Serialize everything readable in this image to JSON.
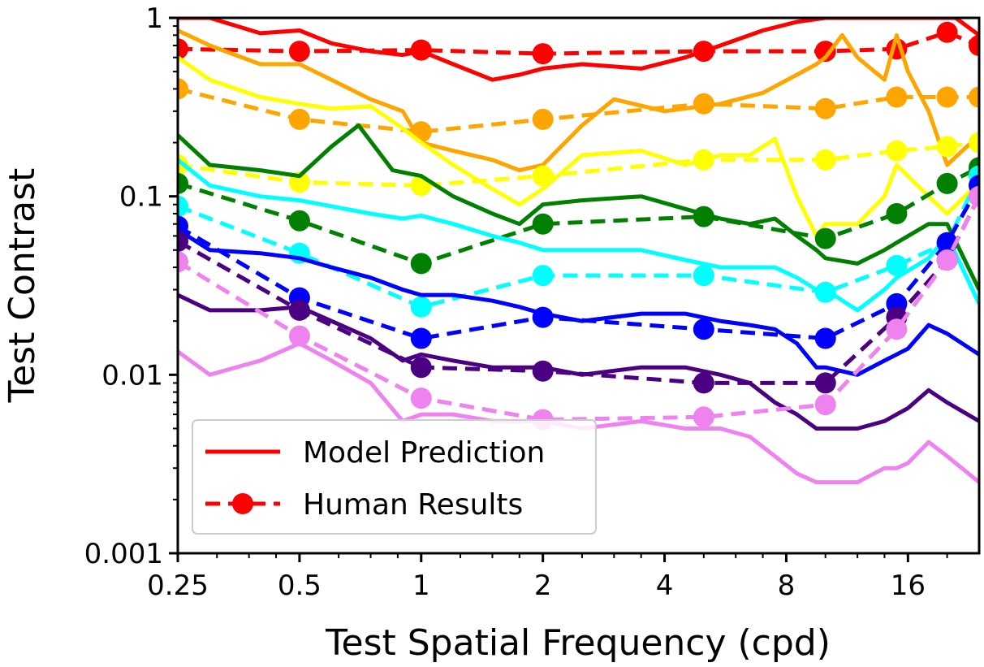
{
  "chart_data": {
    "type": "line",
    "xlabel": "Test Spatial Frequency (cpd)",
    "ylabel": "Test Contrast",
    "xscale": "log2",
    "yscale": "log10",
    "xlim": [
      0.25,
      24
    ],
    "ylim": [
      0.001,
      1
    ],
    "x_ticks": [
      0.25,
      0.5,
      1,
      2,
      4,
      8,
      16
    ],
    "x_tick_labels": [
      "0.25",
      "0.5",
      "1",
      "2",
      "4",
      "8",
      "16"
    ],
    "y_ticks": [
      0.001,
      0.01,
      0.1,
      1
    ],
    "y_tick_labels": [
      "0.001",
      "0.01",
      "0.1",
      "1"
    ],
    "legend": {
      "placement": "lower-left",
      "entries": [
        {
          "label": "Model Prediction",
          "style": "solid"
        },
        {
          "label": "Human Results",
          "style": "dashed-marker"
        }
      ]
    },
    "human_x": [
      0.25,
      0.5,
      1,
      2,
      5,
      10,
      15,
      20,
      24
    ],
    "series": [
      {
        "color": "#ff0000",
        "model_x": [
          0.25,
          0.3,
          0.4,
          0.5,
          0.6,
          0.75,
          0.9,
          1.0,
          1.2,
          1.5,
          1.75,
          2.0,
          2.5,
          3.5,
          4.5,
          5.5,
          7.0,
          8.5,
          10,
          12,
          15,
          18,
          21,
          24
        ],
        "model_y": [
          1.0,
          1.0,
          0.82,
          0.85,
          0.72,
          0.65,
          0.62,
          0.65,
          0.55,
          0.45,
          0.48,
          0.52,
          0.55,
          0.52,
          0.6,
          0.7,
          0.85,
          0.95,
          1.0,
          1.0,
          1.0,
          1.0,
          1.0,
          0.8
        ],
        "human_y": [
          0.67,
          0.65,
          0.66,
          0.63,
          0.65,
          0.65,
          0.67,
          0.83,
          0.7
        ]
      },
      {
        "color": "#ffa500",
        "model_x": [
          0.25,
          0.3,
          0.4,
          0.5,
          0.6,
          0.75,
          0.9,
          1.0,
          1.2,
          1.5,
          1.75,
          2.0,
          2.5,
          3.0,
          4.0,
          5.5,
          7.0,
          8.5,
          9.5,
          10,
          11,
          12,
          14,
          15,
          16,
          18,
          20,
          24
        ],
        "model_y": [
          0.85,
          0.7,
          0.55,
          0.55,
          0.45,
          0.35,
          0.3,
          0.2,
          0.18,
          0.16,
          0.14,
          0.15,
          0.25,
          0.35,
          0.3,
          0.33,
          0.38,
          0.48,
          0.55,
          0.6,
          0.8,
          0.6,
          0.45,
          0.8,
          0.5,
          0.3,
          0.15,
          0.22
        ],
        "human_y": [
          0.4,
          0.27,
          0.23,
          0.27,
          0.33,
          0.31,
          0.36,
          0.36,
          0.36
        ]
      },
      {
        "color": "#ffff00",
        "model_x": [
          0.25,
          0.3,
          0.4,
          0.5,
          0.6,
          0.75,
          0.9,
          1.0,
          1.2,
          1.5,
          1.75,
          2.0,
          2.5,
          3.5,
          4.5,
          5.5,
          6.5,
          7.5,
          8.5,
          9.5,
          10,
          12,
          14,
          15,
          18,
          20,
          24
        ],
        "model_y": [
          0.6,
          0.45,
          0.36,
          0.33,
          0.31,
          0.32,
          0.24,
          0.2,
          0.15,
          0.11,
          0.09,
          0.11,
          0.17,
          0.18,
          0.15,
          0.17,
          0.17,
          0.21,
          0.1,
          0.06,
          0.07,
          0.07,
          0.1,
          0.15,
          0.1,
          0.08,
          0.12
        ],
        "human_y": [
          0.15,
          0.12,
          0.115,
          0.13,
          0.16,
          0.16,
          0.18,
          0.19,
          0.2
        ]
      },
      {
        "color": "#008000",
        "model_x": [
          0.25,
          0.3,
          0.4,
          0.5,
          0.6,
          0.7,
          0.85,
          1.0,
          1.2,
          1.5,
          1.75,
          2.0,
          2.5,
          3.5,
          4.5,
          5.5,
          6.5,
          7.5,
          8.5,
          9.5,
          10,
          12,
          14,
          15,
          18,
          20,
          24
        ],
        "model_y": [
          0.22,
          0.15,
          0.14,
          0.13,
          0.19,
          0.25,
          0.14,
          0.13,
          0.1,
          0.08,
          0.07,
          0.09,
          0.095,
          0.1,
          0.085,
          0.075,
          0.07,
          0.075,
          0.06,
          0.05,
          0.045,
          0.042,
          0.05,
          0.055,
          0.07,
          0.07,
          0.03
        ],
        "human_y": [
          0.118,
          0.073,
          0.042,
          0.07,
          0.077,
          0.058,
          0.08,
          0.118,
          0.145
        ]
      },
      {
        "color": "#00ffff",
        "model_x": [
          0.25,
          0.3,
          0.4,
          0.5,
          0.6,
          0.75,
          0.9,
          1.0,
          1.2,
          1.5,
          1.75,
          2.0,
          2.5,
          3.5,
          4.5,
          5.5,
          6.5,
          7.5,
          8.5,
          9.5,
          10,
          12,
          14,
          15,
          18,
          20,
          24
        ],
        "model_y": [
          0.16,
          0.115,
          0.1,
          0.095,
          0.088,
          0.08,
          0.075,
          0.078,
          0.07,
          0.06,
          0.055,
          0.05,
          0.05,
          0.05,
          0.044,
          0.04,
          0.04,
          0.04,
          0.035,
          0.03,
          0.03,
          0.023,
          0.03,
          0.035,
          0.045,
          0.06,
          0.025
        ],
        "human_y": [
          0.088,
          0.048,
          0.024,
          0.036,
          0.036,
          0.029,
          0.041,
          0.055,
          0.13
        ]
      },
      {
        "color": "#0000ff",
        "model_x": [
          0.25,
          0.3,
          0.4,
          0.5,
          0.6,
          0.75,
          0.9,
          1.0,
          1.2,
          1.5,
          1.75,
          2.0,
          2.5,
          3.5,
          4.5,
          5.5,
          6.5,
          7.5,
          8.5,
          9.5,
          10,
          12,
          14,
          15,
          16,
          18,
          20,
          24
        ],
        "model_y": [
          0.065,
          0.05,
          0.048,
          0.045,
          0.04,
          0.035,
          0.03,
          0.028,
          0.028,
          0.026,
          0.024,
          0.022,
          0.02,
          0.022,
          0.022,
          0.02,
          0.019,
          0.018,
          0.015,
          0.011,
          0.011,
          0.01,
          0.012,
          0.013,
          0.014,
          0.019,
          0.017,
          0.013
        ],
        "human_y": [
          0.068,
          0.027,
          0.016,
          0.021,
          0.018,
          0.016,
          0.025,
          0.055,
          0.115
        ]
      },
      {
        "color": "#4b0082",
        "model_x": [
          0.25,
          0.3,
          0.4,
          0.5,
          0.6,
          0.75,
          0.9,
          1.0,
          1.2,
          1.5,
          1.75,
          2.0,
          2.5,
          3.5,
          4.5,
          5.5,
          6.5,
          7.5,
          8.5,
          9.5,
          10,
          12,
          14,
          15,
          16,
          18,
          20,
          24
        ],
        "model_y": [
          0.028,
          0.023,
          0.023,
          0.024,
          0.02,
          0.016,
          0.012,
          0.013,
          0.012,
          0.011,
          0.011,
          0.011,
          0.01,
          0.011,
          0.011,
          0.01,
          0.009,
          0.007,
          0.006,
          0.005,
          0.005,
          0.005,
          0.0055,
          0.006,
          0.0065,
          0.0082,
          0.007,
          0.0055
        ],
        "human_y": [
          0.056,
          0.023,
          0.011,
          0.0105,
          0.009,
          0.009,
          0.021,
          0.044,
          0.1
        ]
      },
      {
        "color": "#ee82ee",
        "model_x": [
          0.25,
          0.3,
          0.4,
          0.5,
          0.6,
          0.75,
          0.9,
          1.0,
          1.2,
          1.5,
          1.75,
          2.0,
          2.5,
          3.5,
          4.5,
          5.5,
          6.5,
          7.5,
          8.5,
          9.5,
          10,
          12,
          14,
          15,
          16,
          18,
          20,
          24
        ],
        "model_y": [
          0.0135,
          0.01,
          0.012,
          0.015,
          0.012,
          0.009,
          0.0055,
          0.006,
          0.006,
          0.0055,
          0.0055,
          0.0055,
          0.005,
          0.0055,
          0.005,
          0.005,
          0.0045,
          0.0035,
          0.0028,
          0.0025,
          0.0025,
          0.0025,
          0.003,
          0.003,
          0.0032,
          0.0042,
          0.0035,
          0.0025
        ],
        "human_y": [
          0.043,
          0.0165,
          0.0074,
          0.0056,
          0.0058,
          0.0068,
          0.018,
          0.044,
          0.1
        ]
      }
    ]
  }
}
